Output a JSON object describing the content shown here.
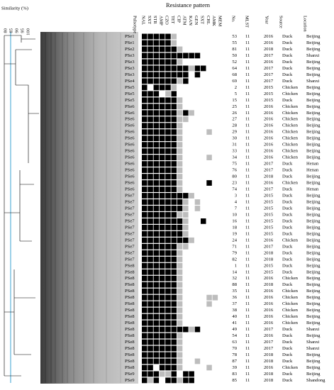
{
  "header": {
    "similarity_label": "Similarity (%)",
    "similarity_ticks": [
      "80",
      "85",
      "90",
      "95",
      "100"
    ],
    "title": "Resistance pattern",
    "columns": [
      "Pulsotype",
      [
        "NAL",
        "SXT",
        "STR",
        "AMP",
        "CZO",
        "TET",
        "CIP",
        "ATM",
        "KAN",
        "GEN",
        "SXT",
        "CHL",
        "AMK",
        "MEM"
      ],
      "No.",
      "MLST",
      "Year",
      "Source",
      "Location"
    ]
  },
  "rows": [
    [
      "PSe1",
      [
        2,
        2,
        2,
        2,
        2,
        1,
        0,
        0,
        0,
        0,
        0,
        0,
        0,
        0
      ],
      53,
      11,
      2016,
      "Duck",
      "Beijing"
    ],
    [
      "PSe1",
      [
        2,
        2,
        2,
        2,
        2,
        1,
        0,
        0,
        0,
        0,
        0,
        0,
        0,
        0
      ],
      55,
      11,
      2016,
      "Duck",
      "Beijing"
    ],
    [
      "PSe2",
      [
        2,
        2,
        2,
        2,
        2,
        2,
        1,
        0,
        0,
        0,
        0,
        0,
        0,
        0
      ],
      81,
      11,
      2018,
      "Duck",
      "Beijing"
    ],
    [
      "PSe3",
      [
        2,
        2,
        2,
        2,
        2,
        2,
        2,
        2,
        2,
        2,
        0,
        0,
        0,
        0
      ],
      50,
      11,
      2017,
      "Duck",
      "Shanxi"
    ],
    [
      "PSe3",
      [
        2,
        2,
        2,
        2,
        2,
        2,
        1,
        0,
        0,
        0,
        0,
        0,
        0,
        0
      ],
      52,
      11,
      2016,
      "Duck",
      "Beijing"
    ],
    [
      "PSe3",
      [
        2,
        2,
        2,
        2,
        2,
        2,
        2,
        2,
        1,
        2,
        2,
        0,
        0,
        0
      ],
      64,
      11,
      2017,
      "Duck",
      "Beijing"
    ],
    [
      "PSe3",
      [
        2,
        2,
        2,
        2,
        2,
        2,
        2,
        2,
        0,
        2,
        0,
        0,
        0,
        0
      ],
      68,
      11,
      2017,
      "Duck",
      "Beijing"
    ],
    [
      "PSe4",
      [
        2,
        2,
        2,
        2,
        2,
        2,
        1,
        2,
        0,
        0,
        0,
        0,
        0,
        0
      ],
      69,
      11,
      2017,
      "Duck",
      "Shanxi"
    ],
    [
      "PSe5",
      [
        2,
        0,
        2,
        2,
        2,
        1,
        0,
        0,
        0,
        0,
        0,
        0,
        0,
        0
      ],
      2,
      11,
      2015,
      "Chicken",
      "Beijing"
    ],
    [
      "PSe5",
      [
        2,
        2,
        2,
        0,
        1,
        2,
        0,
        0,
        0,
        0,
        0,
        0,
        0,
        0
      ],
      5,
      11,
      2015,
      "Chicken",
      "Beijing"
    ],
    [
      "PSe5",
      [
        2,
        2,
        2,
        2,
        2,
        2,
        1,
        0,
        0,
        0,
        0,
        0,
        0,
        0
      ],
      15,
      11,
      2015,
      "Duck",
      "Beijing"
    ],
    [
      "PSe6",
      [
        2,
        2,
        2,
        2,
        2,
        2,
        1,
        0,
        0,
        0,
        0,
        0,
        0,
        0
      ],
      25,
      11,
      2016,
      "Chicken",
      "Beijing"
    ],
    [
      "PSe6",
      [
        2,
        2,
        2,
        2,
        2,
        2,
        1,
        2,
        1,
        0,
        0,
        0,
        0,
        0
      ],
      26,
      11,
      2016,
      "Chicken",
      "Beijing"
    ],
    [
      "PSe6",
      [
        2,
        2,
        2,
        2,
        2,
        2,
        1,
        1,
        0,
        0,
        0,
        0,
        0,
        0
      ],
      27,
      11,
      2016,
      "Chicken",
      "Beijing"
    ],
    [
      "PSe6",
      [
        2,
        2,
        2,
        2,
        2,
        2,
        1,
        0,
        0,
        0,
        0,
        0,
        0,
        0
      ],
      28,
      11,
      2016,
      "Chicken",
      "Beijing"
    ],
    [
      "PSe6",
      [
        2,
        2,
        2,
        2,
        2,
        2,
        1,
        0,
        0,
        0,
        0,
        1,
        0,
        0
      ],
      29,
      11,
      2016,
      "Chicken",
      "Beijing"
    ],
    [
      "PSe6",
      [
        2,
        2,
        2,
        2,
        2,
        2,
        1,
        0,
        0,
        0,
        0,
        0,
        0,
        0
      ],
      30,
      11,
      2016,
      "Chicken",
      "Beijing"
    ],
    [
      "PSe6",
      [
        2,
        2,
        2,
        2,
        2,
        2,
        1,
        0,
        0,
        0,
        0,
        0,
        0,
        0
      ],
      31,
      11,
      2016,
      "Chicken",
      "Beijing"
    ],
    [
      "PSe6",
      [
        2,
        2,
        2,
        2,
        2,
        2,
        1,
        0,
        0,
        0,
        0,
        0,
        0,
        0
      ],
      33,
      11,
      2016,
      "Chicken",
      "Beijing"
    ],
    [
      "PSe6",
      [
        2,
        2,
        2,
        2,
        2,
        2,
        1,
        0,
        0,
        0,
        0,
        1,
        0,
        0
      ],
      34,
      11,
      2016,
      "Chicken",
      "Beijing"
    ],
    [
      "PSe6",
      [
        2,
        2,
        2,
        2,
        2,
        2,
        1,
        0,
        0,
        0,
        0,
        0,
        0,
        0
      ],
      75,
      11,
      2017,
      "Duck",
      "Henan"
    ],
    [
      "PSe6",
      [
        2,
        2,
        2,
        2,
        2,
        2,
        1,
        0,
        0,
        0,
        0,
        0,
        0,
        0
      ],
      76,
      11,
      2017,
      "Duck",
      "Henan"
    ],
    [
      "PSe6",
      [
        2,
        2,
        2,
        2,
        2,
        2,
        1,
        0,
        0,
        0,
        0,
        0,
        0,
        0
      ],
      80,
      11,
      2018,
      "Duck",
      "Beijing"
    ],
    [
      "PSe6",
      [
        2,
        2,
        2,
        2,
        2,
        2,
        1,
        0,
        0,
        0,
        0,
        2,
        0,
        0
      ],
      23,
      11,
      2016,
      "Chicken",
      "Beijing"
    ],
    [
      "PSe6",
      [
        2,
        2,
        2,
        2,
        2,
        2,
        1,
        0,
        0,
        0,
        0,
        0,
        0,
        0
      ],
      74,
      11,
      2017,
      "Duck",
      "Henan"
    ],
    [
      "PSe7",
      [
        2,
        2,
        2,
        2,
        2,
        2,
        2,
        2,
        1,
        0,
        0,
        0,
        0,
        0
      ],
      3,
      11,
      2015,
      "Duck",
      "Beijing"
    ],
    [
      "PSe7",
      [
        2,
        2,
        2,
        2,
        2,
        2,
        2,
        1,
        0,
        1,
        0,
        0,
        0,
        0
      ],
      4,
      11,
      2015,
      "Duck",
      "Beijing"
    ],
    [
      "PSe7",
      [
        2,
        2,
        2,
        2,
        2,
        2,
        2,
        1,
        0,
        1,
        0,
        0,
        0,
        0
      ],
      7,
      11,
      2015,
      "Duck",
      "Beijing"
    ],
    [
      "PSe7",
      [
        2,
        2,
        2,
        2,
        2,
        2,
        1,
        1,
        0,
        0,
        0,
        0,
        0,
        0
      ],
      10,
      11,
      2015,
      "Duck",
      "Beijing"
    ],
    [
      "PSe7",
      [
        2,
        2,
        2,
        2,
        2,
        2,
        2,
        1,
        0,
        0,
        2,
        0,
        0,
        0
      ],
      16,
      11,
      2015,
      "Duck",
      "Beijing"
    ],
    [
      "PSe7",
      [
        2,
        2,
        2,
        2,
        2,
        2,
        2,
        1,
        0,
        0,
        0,
        0,
        0,
        0
      ],
      18,
      11,
      2015,
      "Duck",
      "Beijing"
    ],
    [
      "PSe7",
      [
        2,
        2,
        2,
        2,
        2,
        2,
        2,
        1,
        0,
        0,
        0,
        0,
        0,
        0
      ],
      19,
      11,
      2015,
      "Duck",
      "Beijing"
    ],
    [
      "PSe7",
      [
        2,
        2,
        2,
        2,
        2,
        2,
        2,
        2,
        1,
        0,
        0,
        0,
        0,
        0
      ],
      24,
      11,
      2016,
      "Chicken",
      "Beijing"
    ],
    [
      "PSe7",
      [
        2,
        2,
        2,
        2,
        2,
        2,
        1,
        1,
        0,
        0,
        0,
        0,
        0,
        0
      ],
      71,
      11,
      2017,
      "Duck",
      "Beijing"
    ],
    [
      "PSe7",
      [
        2,
        2,
        2,
        2,
        2,
        2,
        1,
        0,
        0,
        0,
        0,
        0,
        0,
        0
      ],
      79,
      11,
      2018,
      "Duck",
      "Beijing"
    ],
    [
      "PSe7",
      [
        2,
        2,
        2,
        2,
        2,
        2,
        1,
        0,
        0,
        0,
        0,
        0,
        0,
        0
      ],
      82,
      11,
      2018,
      "Duck",
      "Beijing"
    ],
    [
      "PSe8",
      [
        2,
        2,
        2,
        2,
        2,
        2,
        1,
        0,
        0,
        0,
        0,
        0,
        0,
        0
      ],
      1,
      11,
      2015,
      "Duck",
      "Beijing"
    ],
    [
      "PSe8",
      [
        2,
        2,
        2,
        2,
        2,
        2,
        1,
        0,
        0,
        0,
        0,
        0,
        0,
        0
      ],
      14,
      11,
      2015,
      "Duck",
      "Beijing"
    ],
    [
      "PSe8",
      [
        2,
        2,
        2,
        2,
        2,
        2,
        1,
        0,
        0,
        0,
        0,
        0,
        0,
        0
      ],
      32,
      11,
      2016,
      "Chicken",
      "Beijing"
    ],
    [
      "PSe8",
      [
        2,
        2,
        2,
        2,
        2,
        2,
        1,
        0,
        0,
        0,
        0,
        0,
        0,
        0
      ],
      88,
      11,
      2018,
      "Duck",
      "Beijing"
    ],
    [
      "PSe8",
      [
        2,
        2,
        2,
        2,
        2,
        2,
        1,
        0,
        0,
        0,
        0,
        0,
        0,
        0
      ],
      35,
      11,
      2016,
      "Chicken",
      "Beijing"
    ],
    [
      "PSe8",
      [
        2,
        2,
        2,
        2,
        2,
        2,
        1,
        0,
        0,
        0,
        0,
        1,
        1,
        0
      ],
      36,
      11,
      2016,
      "Chicken",
      "Beijing"
    ],
    [
      "PSe8",
      [
        2,
        2,
        2,
        2,
        2,
        2,
        1,
        0,
        0,
        0,
        0,
        1,
        0,
        0
      ],
      37,
      11,
      2016,
      "Chicken",
      "Beijing"
    ],
    [
      "PSe8",
      [
        2,
        2,
        2,
        2,
        2,
        2,
        1,
        0,
        0,
        0,
        0,
        0,
        0,
        0
      ],
      38,
      11,
      2016,
      "Chicken",
      "Beijing"
    ],
    [
      "PSe8",
      [
        2,
        2,
        2,
        2,
        2,
        2,
        1,
        0,
        0,
        0,
        0,
        0,
        0,
        0
      ],
      40,
      11,
      2016,
      "Chicken",
      "Beijing"
    ],
    [
      "PSe8",
      [
        2,
        2,
        2,
        2,
        2,
        2,
        1,
        0,
        0,
        0,
        0,
        0,
        0,
        0
      ],
      41,
      11,
      2016,
      "Chicken",
      "Beijing"
    ],
    [
      "PSe8",
      [
        2,
        2,
        2,
        2,
        2,
        2,
        2,
        2,
        1,
        2,
        0,
        0,
        0,
        0
      ],
      49,
      11,
      2017,
      "Duck",
      "Shanxi"
    ],
    [
      "PSe8",
      [
        2,
        2,
        2,
        2,
        2,
        2,
        1,
        0,
        0,
        0,
        0,
        0,
        0,
        0
      ],
      54,
      11,
      2016,
      "Duck",
      "Beijing"
    ],
    [
      "PSe8",
      [
        2,
        2,
        2,
        2,
        2,
        2,
        1,
        0,
        0,
        0,
        0,
        0,
        0,
        0
      ],
      63,
      11,
      2017,
      "Duck",
      "Shanxi"
    ],
    [
      "PSe8",
      [
        2,
        2,
        2,
        2,
        2,
        2,
        1,
        0,
        0,
        0,
        0,
        0,
        0,
        0
      ],
      70,
      11,
      2017,
      "Duck",
      "Shanxi"
    ],
    [
      "PSe8",
      [
        2,
        2,
        2,
        2,
        2,
        2,
        1,
        0,
        0,
        0,
        0,
        0,
        0,
        0
      ],
      78,
      11,
      2018,
      "Duck",
      "Beijing"
    ],
    [
      "PSe8",
      [
        2,
        2,
        2,
        2,
        2,
        2,
        1,
        0,
        0,
        1,
        0,
        0,
        0,
        0
      ],
      87,
      11,
      2018,
      "Duck",
      "Beijing"
    ],
    [
      "PSe8",
      [
        2,
        2,
        0,
        2,
        2,
        2,
        1,
        0,
        0,
        0,
        0,
        1,
        0,
        0
      ],
      39,
      11,
      2016,
      "Chicken",
      "Beijing"
    ],
    [
      "PSe9",
      [
        2,
        2,
        2,
        1,
        1,
        2,
        0,
        2,
        2,
        0,
        0,
        0,
        0,
        0
      ],
      83,
      11,
      2018,
      "Duck",
      "Beijing"
    ],
    [
      "PSe9",
      [
        2,
        1,
        2,
        0,
        2,
        2,
        1,
        2,
        2,
        0,
        0,
        0,
        0,
        0
      ],
      85,
      11,
      2018,
      "Duck",
      "Shandong"
    ]
  ]
}
